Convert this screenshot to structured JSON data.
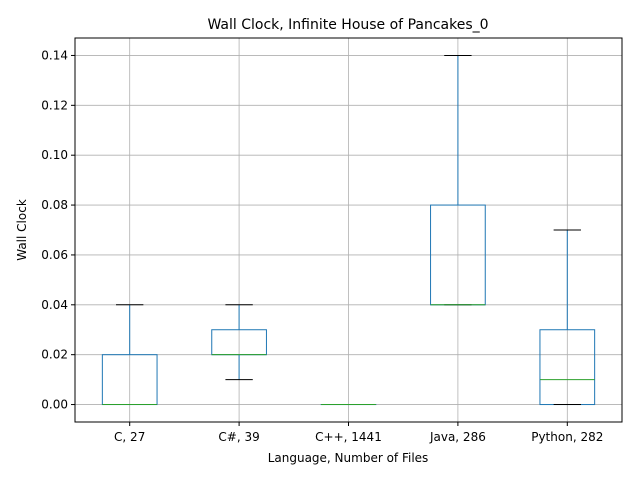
{
  "chart_data": {
    "type": "box",
    "title": "Wall Clock, Infinite House of Pancakes_0",
    "xlabel": "Language, Number of Files",
    "ylabel": "Wall Clock",
    "ylim": [
      -0.007,
      0.147
    ],
    "yticks": [
      0.0,
      0.02,
      0.04,
      0.06,
      0.08,
      0.1,
      0.12,
      0.14
    ],
    "ytick_labels": [
      "0.00",
      "0.02",
      "0.04",
      "0.06",
      "0.08",
      "0.10",
      "0.12",
      "0.14"
    ],
    "grid": true,
    "categories": [
      "C, 27",
      "C#, 39",
      "C++, 1441",
      "Java, 286",
      "Python, 282"
    ],
    "boxes": [
      {
        "whisker_low": 0.0,
        "q1": 0.0,
        "median": 0.0,
        "q3": 0.02,
        "whisker_high": 0.04
      },
      {
        "whisker_low": 0.01,
        "q1": 0.02,
        "median": 0.02,
        "q3": 0.03,
        "whisker_high": 0.04
      },
      {
        "whisker_low": 0.0,
        "q1": 0.0,
        "median": 0.0,
        "q3": 0.0,
        "whisker_high": 0.0
      },
      {
        "whisker_low": 0.04,
        "q1": 0.04,
        "median": 0.04,
        "q3": 0.08,
        "whisker_high": 0.14
      },
      {
        "whisker_low": 0.0,
        "q1": 0.0,
        "median": 0.01,
        "q3": 0.03,
        "whisker_high": 0.07
      }
    ],
    "colors": {
      "box": "#1f77b4",
      "median": "#2ca02c",
      "whisker_cap": "#000000",
      "grid": "#b0b0b0"
    }
  }
}
